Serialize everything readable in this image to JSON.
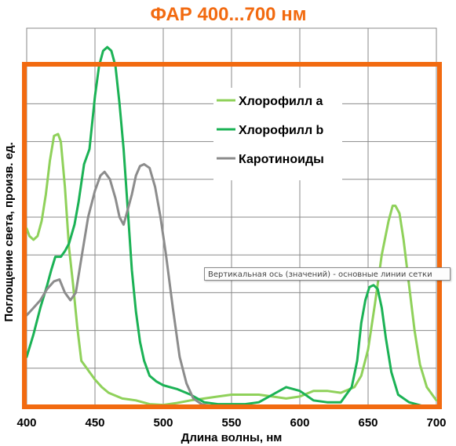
{
  "chart_data": {
    "type": "line",
    "title": "ФАР 400...700 нм",
    "xlabel": "Длина волны, нм",
    "ylabel": "Поглощение света, произв. ед.",
    "xlim": [
      400,
      700
    ],
    "x_ticks": [
      400,
      450,
      500,
      550,
      600,
      650,
      700
    ],
    "ylim": [
      0,
      100
    ],
    "y_gridlines": 10,
    "grid": true,
    "legend_position": "top-right",
    "highlight_frame_color": "#f26a10",
    "series": [
      {
        "name": "Хлорофилл a",
        "color": "#8fd15a",
        "points": [
          [
            400,
            47
          ],
          [
            402,
            45
          ],
          [
            405,
            44
          ],
          [
            408,
            45
          ],
          [
            411,
            49
          ],
          [
            414,
            56
          ],
          [
            417,
            65
          ],
          [
            420,
            71.5
          ],
          [
            423,
            72
          ],
          [
            425,
            70
          ],
          [
            428,
            58
          ],
          [
            431,
            42
          ],
          [
            434,
            32
          ],
          [
            437,
            21
          ],
          [
            440,
            12
          ],
          [
            443,
            10.5
          ],
          [
            446,
            9
          ],
          [
            450,
            7
          ],
          [
            455,
            5
          ],
          [
            460,
            3.5
          ],
          [
            470,
            2
          ],
          [
            480,
            1.5
          ],
          [
            490,
            0.5
          ],
          [
            500,
            0.3
          ],
          [
            510,
            0.8
          ],
          [
            520,
            1.5
          ],
          [
            530,
            2
          ],
          [
            540,
            2.5
          ],
          [
            550,
            3
          ],
          [
            560,
            3
          ],
          [
            570,
            3
          ],
          [
            580,
            2.5
          ],
          [
            590,
            2
          ],
          [
            600,
            2.5
          ],
          [
            610,
            4
          ],
          [
            620,
            4
          ],
          [
            630,
            3.5
          ],
          [
            640,
            5
          ],
          [
            645,
            8
          ],
          [
            650,
            15
          ],
          [
            655,
            27
          ],
          [
            660,
            40
          ],
          [
            665,
            49
          ],
          [
            668,
            53
          ],
          [
            670,
            53
          ],
          [
            673,
            51
          ],
          [
            676,
            44
          ],
          [
            680,
            32
          ],
          [
            684,
            20
          ],
          [
            688,
            11
          ],
          [
            693,
            5
          ],
          [
            700,
            1.5
          ]
        ]
      },
      {
        "name": "Хлорофилл b",
        "color": "#1bb255",
        "points": [
          [
            400,
            13
          ],
          [
            405,
            19
          ],
          [
            410,
            26
          ],
          [
            415,
            32
          ],
          [
            418,
            36
          ],
          [
            421,
            39.5
          ],
          [
            425,
            39.5
          ],
          [
            428,
            41
          ],
          [
            431,
            43
          ],
          [
            435,
            48
          ],
          [
            438,
            54
          ],
          [
            442,
            64
          ],
          [
            446,
            68
          ],
          [
            450,
            82
          ],
          [
            453,
            90
          ],
          [
            456,
            94
          ],
          [
            459,
            95
          ],
          [
            462,
            94
          ],
          [
            465,
            90
          ],
          [
            468,
            80
          ],
          [
            471,
            68
          ],
          [
            474,
            52
          ],
          [
            477,
            36
          ],
          [
            480,
            25
          ],
          [
            483,
            17
          ],
          [
            486,
            12
          ],
          [
            490,
            8
          ],
          [
            495,
            6.5
          ],
          [
            500,
            5.5
          ],
          [
            505,
            5
          ],
          [
            510,
            4.5
          ],
          [
            520,
            3
          ],
          [
            530,
            1
          ],
          [
            540,
            0.5
          ],
          [
            550,
            0.5
          ],
          [
            560,
            0.5
          ],
          [
            570,
            1
          ],
          [
            580,
            3
          ],
          [
            590,
            5
          ],
          [
            600,
            4
          ],
          [
            610,
            1.5
          ],
          [
            620,
            1
          ],
          [
            630,
            1
          ],
          [
            638,
            5
          ],
          [
            642,
            12
          ],
          [
            645,
            22
          ],
          [
            648,
            28
          ],
          [
            651,
            31.5
          ],
          [
            654,
            32
          ],
          [
            657,
            31
          ],
          [
            660,
            26
          ],
          [
            663,
            18
          ],
          [
            667,
            9
          ],
          [
            672,
            3
          ],
          [
            680,
            1
          ],
          [
            690,
            0
          ],
          [
            700,
            0
          ]
        ]
      },
      {
        "name": "Каротиноиды",
        "color": "#8c8c8c",
        "points": [
          [
            400,
            24
          ],
          [
            405,
            26
          ],
          [
            410,
            28
          ],
          [
            415,
            31
          ],
          [
            420,
            33
          ],
          [
            424,
            33.5
          ],
          [
            428,
            30
          ],
          [
            432,
            28
          ],
          [
            436,
            30
          ],
          [
            440,
            39
          ],
          [
            445,
            50
          ],
          [
            450,
            57
          ],
          [
            454,
            61
          ],
          [
            457,
            62
          ],
          [
            461,
            60
          ],
          [
            465,
            55
          ],
          [
            468,
            50
          ],
          [
            471,
            48
          ],
          [
            474,
            52
          ],
          [
            477,
            56
          ],
          [
            480,
            61
          ],
          [
            483,
            63.5
          ],
          [
            486,
            64
          ],
          [
            490,
            63
          ],
          [
            494,
            58
          ],
          [
            498,
            50
          ],
          [
            502,
            40
          ],
          [
            507,
            26
          ],
          [
            512,
            13
          ],
          [
            517,
            6
          ],
          [
            522,
            2
          ],
          [
            528,
            0.5
          ],
          [
            535,
            0
          ],
          [
            550,
            0
          ],
          [
            700,
            0
          ]
        ]
      }
    ]
  },
  "tooltip": "Вертикальная ось (значений)  - основные линии сетки"
}
